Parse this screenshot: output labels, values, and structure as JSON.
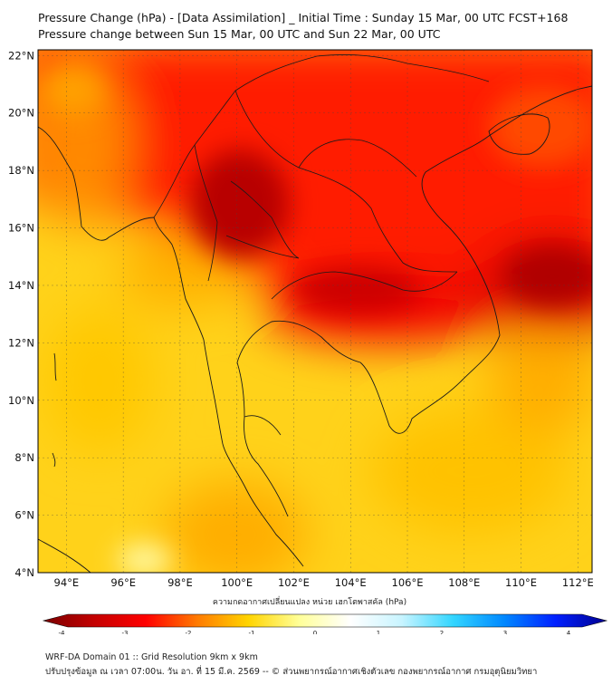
{
  "title": {
    "line1": "Pressure Change (hPa) - [Data Assimilation] _ Initial Time : Sunday 15 Mar, 00 UTC FCST+168",
    "line2": "Pressure change between Sun 15 Mar, 00 UTC and Sun 22 Mar, 00 UTC"
  },
  "map": {
    "lat_labels": [
      "22°N",
      "20°N",
      "18°N",
      "16°N",
      "14°N",
      "12°N",
      "10°N",
      "8°N",
      "6°N",
      "4°N"
    ],
    "lat_values": [
      22,
      20,
      18,
      16,
      14,
      12,
      10,
      8,
      6,
      4
    ],
    "lon_labels": [
      "94°E",
      "96°E",
      "98°E",
      "100°E",
      "102°E",
      "104°E",
      "106°E",
      "108°E",
      "110°E",
      "112°E"
    ],
    "lon_values": [
      94,
      96,
      98,
      100,
      102,
      104,
      106,
      108,
      110,
      112
    ],
    "extent": {
      "lon_min": 93,
      "lon_max": 112.5,
      "lat_min": 4,
      "lat_max": 22.2
    },
    "field_cells": [
      {
        "lon": 101,
        "lat": 17,
        "value": -3.6
      },
      {
        "lon": 100,
        "lat": 16,
        "value": -3.4
      },
      {
        "lon": 102,
        "lat": 15,
        "value": -3.0
      },
      {
        "lon": 105,
        "lat": 13.5,
        "value": -3.0
      },
      {
        "lon": 110.5,
        "lat": 14.2,
        "value": -3.5
      },
      {
        "lon": 104,
        "lat": 18,
        "value": -2.8
      },
      {
        "lon": 108,
        "lat": 20,
        "value": -2.6
      },
      {
        "lon": 96,
        "lat": 21.5,
        "value": -2.5
      },
      {
        "lon": 94.5,
        "lat": 20,
        "value": -1.8
      },
      {
        "lon": 96,
        "lat": 16,
        "value": -1.2
      },
      {
        "lon": 95,
        "lat": 10,
        "value": -1.0
      },
      {
        "lon": 98,
        "lat": 8,
        "value": -1.1
      },
      {
        "lon": 102,
        "lat": 9,
        "value": -1.2
      },
      {
        "lon": 106,
        "lat": 10,
        "value": -1.5
      },
      {
        "lon": 110,
        "lat": 9,
        "value": -1.4
      },
      {
        "lon": 100,
        "lat": 5,
        "value": -1.6
      },
      {
        "lon": 96.5,
        "lat": 4.3,
        "value": -0.3
      },
      {
        "lon": 107,
        "lat": 5,
        "value": -1.0
      }
    ]
  },
  "colorbar": {
    "title": "ความกดอากาศเปลี่ยนแปลง หน่วย เฮกโตพาสคัล (hPa)",
    "min": -4,
    "max": 4,
    "tick_labels": [
      "-4",
      "-3",
      "-2",
      "-1",
      "0",
      "1",
      "2",
      "3",
      "4"
    ],
    "colors": [
      "#7a0000",
      "#c40000",
      "#ff0000",
      "#ff7a00",
      "#ffd400",
      "#ffff99",
      "#ffffff",
      "#c8f4ff",
      "#33d6ff",
      "#0088ff",
      "#0020ff",
      "#000090"
    ]
  },
  "footer": {
    "line1": "WRF-DA Domain 01 :: Grid Resolution 9km x 9km",
    "line2": "ปรับปรุงข้อมูล ณ เวลา 07:00น. วัน อา. ที่ 15 มี.ค. 2569 -- © ส่วนพยากรณ์อากาศเชิงตัวเลข กองพยากรณ์อากาศ กรมอุตุนิยมวิทยา"
  }
}
